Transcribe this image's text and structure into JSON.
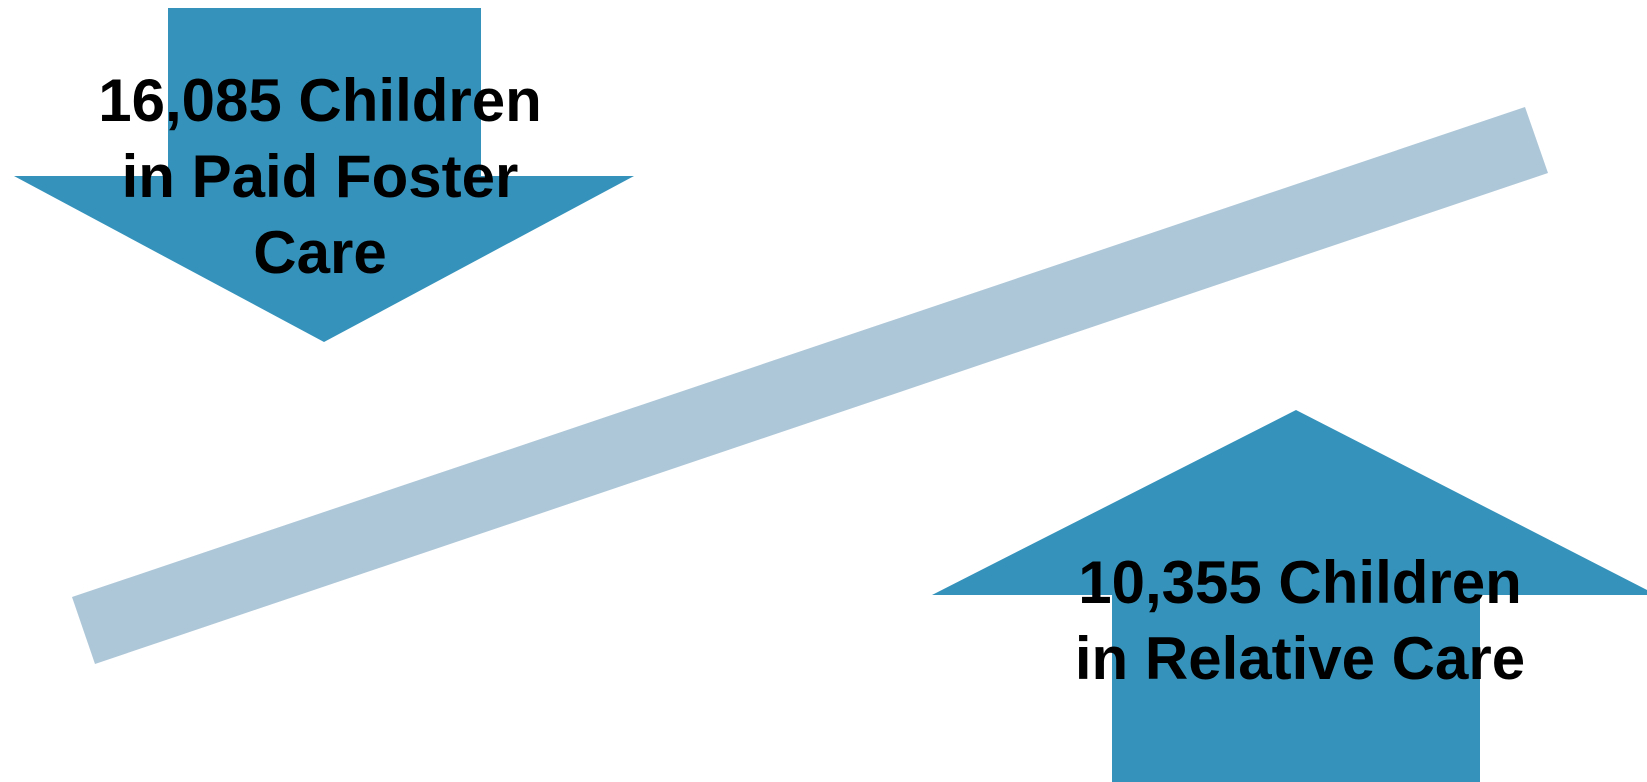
{
  "diagram": {
    "colors": {
      "arrow": "#3592bb",
      "seesaw_beam": "#aec7d8",
      "text": "#000000",
      "background": "#ffffff"
    },
    "foster_arrow": {
      "direction": "down",
      "label_lines": [
        "16,085 Children",
        "in Paid Foster",
        "Care"
      ]
    },
    "relative_arrow": {
      "direction": "up",
      "label_lines": [
        "10,355 Children",
        "in Relative Care"
      ]
    }
  }
}
